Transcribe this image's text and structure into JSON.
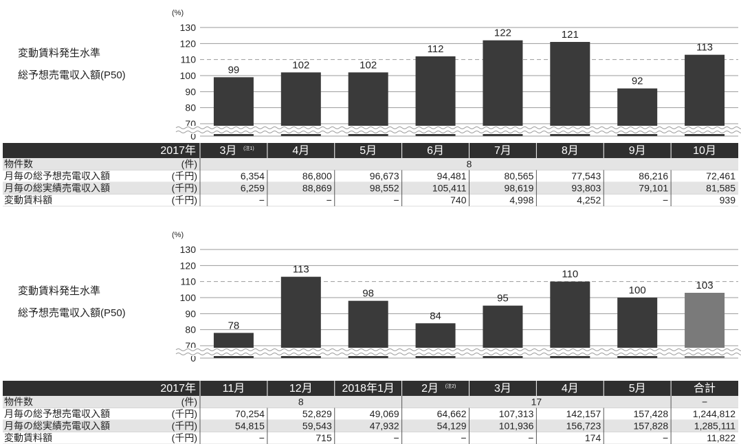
{
  "colors": {
    "bar": "#3a3a3a",
    "bar_total": "#7a7a7a",
    "header_bg": "#2f2f2f",
    "header_text": "#ffffff",
    "alt_row": "#e4e4e4",
    "grid": "#9a9a9a",
    "text": "#222222"
  },
  "side_label_1": "変動賃料発生水準",
  "side_label_2": "総予想売電収入額(P50)",
  "year_label": "2017年",
  "chart_data": [
    {
      "type": "bar",
      "unit": "(%)",
      "y_ticks": [
        "0",
        "70",
        "80",
        "90",
        "100",
        "110",
        "120",
        "130"
      ],
      "ylim": [
        70,
        130
      ],
      "axis_break": true,
      "reference_line": 110,
      "categories": [
        "3月",
        "4月",
        "5月",
        "6月",
        "7月",
        "8月",
        "9月",
        "10月"
      ],
      "category_notes": [
        "(注1)",
        "",
        "",
        "",
        "",
        "",
        "",
        ""
      ],
      "values": [
        99,
        102,
        102,
        112,
        122,
        121,
        92,
        113
      ],
      "value_labels": [
        "99",
        "102",
        "102",
        "112",
        "122",
        "121",
        "92",
        "113"
      ],
      "highlight_last": false
    },
    {
      "type": "bar",
      "unit": "(%)",
      "y_ticks": [
        "0",
        "70",
        "80",
        "90",
        "100",
        "110",
        "120",
        "130"
      ],
      "ylim": [
        70,
        130
      ],
      "axis_break": true,
      "reference_line": 110,
      "categories": [
        "11月",
        "12月",
        "2018年1月",
        "2月",
        "3月",
        "4月",
        "5月",
        "合計"
      ],
      "category_notes": [
        "",
        "",
        "",
        "(注2)",
        "",
        "",
        "",
        ""
      ],
      "values": [
        78,
        113,
        98,
        84,
        95,
        110,
        100,
        103
      ],
      "value_labels": [
        "78",
        "113",
        "98",
        "84",
        "95",
        "110",
        "100",
        "103"
      ],
      "highlight_last": true
    }
  ],
  "tables": [
    {
      "rows": [
        {
          "label": "物件数",
          "unit": "(件)",
          "alt": true,
          "spans": [
            {
              "from": 0,
              "count": 8,
              "text": "8"
            }
          ]
        },
        {
          "label": "月毎の総予想売電収入額",
          "unit": "(千円)",
          "alt": false,
          "cells": [
            "6,354",
            "86,800",
            "96,673",
            "94,481",
            "80,565",
            "77,543",
            "86,216",
            "72,461"
          ]
        },
        {
          "label": "月毎の総実績売電収入額",
          "unit": "(千円)",
          "alt": true,
          "cells": [
            "6,259",
            "88,869",
            "98,552",
            "105,411",
            "98,619",
            "93,803",
            "79,101",
            "81,585"
          ]
        },
        {
          "label": "変動賃料額",
          "unit": "(千円)",
          "alt": false,
          "cells": [
            "−",
            "−",
            "−",
            "740",
            "4,998",
            "4,252",
            "−",
            "939"
          ]
        }
      ]
    },
    {
      "rows": [
        {
          "label": "物件数",
          "unit": "(件)",
          "alt": true,
          "spans": [
            {
              "from": 0,
              "count": 3,
              "text": "8"
            },
            {
              "from": 3,
              "count": 4,
              "text": "17"
            },
            {
              "from": 7,
              "count": 1,
              "text": "−"
            }
          ]
        },
        {
          "label": "月毎の総予想売電収入額",
          "unit": "(千円)",
          "alt": false,
          "cells": [
            "70,254",
            "52,829",
            "49,069",
            "64,662",
            "107,313",
            "142,157",
            "157,428",
            "1,244,812"
          ]
        },
        {
          "label": "月毎の総実績売電収入額",
          "unit": "(千円)",
          "alt": true,
          "cells": [
            "54,815",
            "59,543",
            "47,932",
            "54,129",
            "101,936",
            "156,723",
            "157,828",
            "1,285,111"
          ]
        },
        {
          "label": "変動賃料額",
          "unit": "(千円)",
          "alt": false,
          "cells": [
            "−",
            "715",
            "−",
            "−",
            "−",
            "174",
            "−",
            "11,822"
          ]
        }
      ]
    }
  ]
}
